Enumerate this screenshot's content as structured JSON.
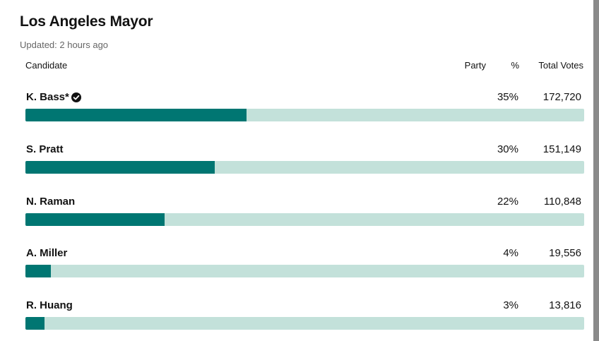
{
  "header": {
    "title": "Los Angeles Mayor",
    "updated": "Updated: 2 hours ago"
  },
  "columns": {
    "candidate": "Candidate",
    "party": "Party",
    "percent": "%",
    "total_votes": "Total Votes"
  },
  "colors": {
    "bar_fill": "#007672",
    "bar_track": "#c3e1da"
  },
  "candidates": [
    {
      "name": "K. Bass*",
      "winner": true,
      "party": "",
      "percent": "35%",
      "votes": "172,720",
      "share": 0.35
    },
    {
      "name": "S. Pratt",
      "winner": false,
      "party": "",
      "percent": "30%",
      "votes": "151,149",
      "share": 0.3
    },
    {
      "name": "N. Raman",
      "winner": false,
      "party": "",
      "percent": "22%",
      "votes": "110,848",
      "share": 0.22
    },
    {
      "name": "A. Miller",
      "winner": false,
      "party": "",
      "percent": "4%",
      "votes": "19,556",
      "share": 0.04
    },
    {
      "name": "R. Huang",
      "winner": false,
      "party": "",
      "percent": "3%",
      "votes": "13,816",
      "share": 0.03
    }
  ],
  "icons": {
    "winner": "checkmark-circle-icon"
  }
}
